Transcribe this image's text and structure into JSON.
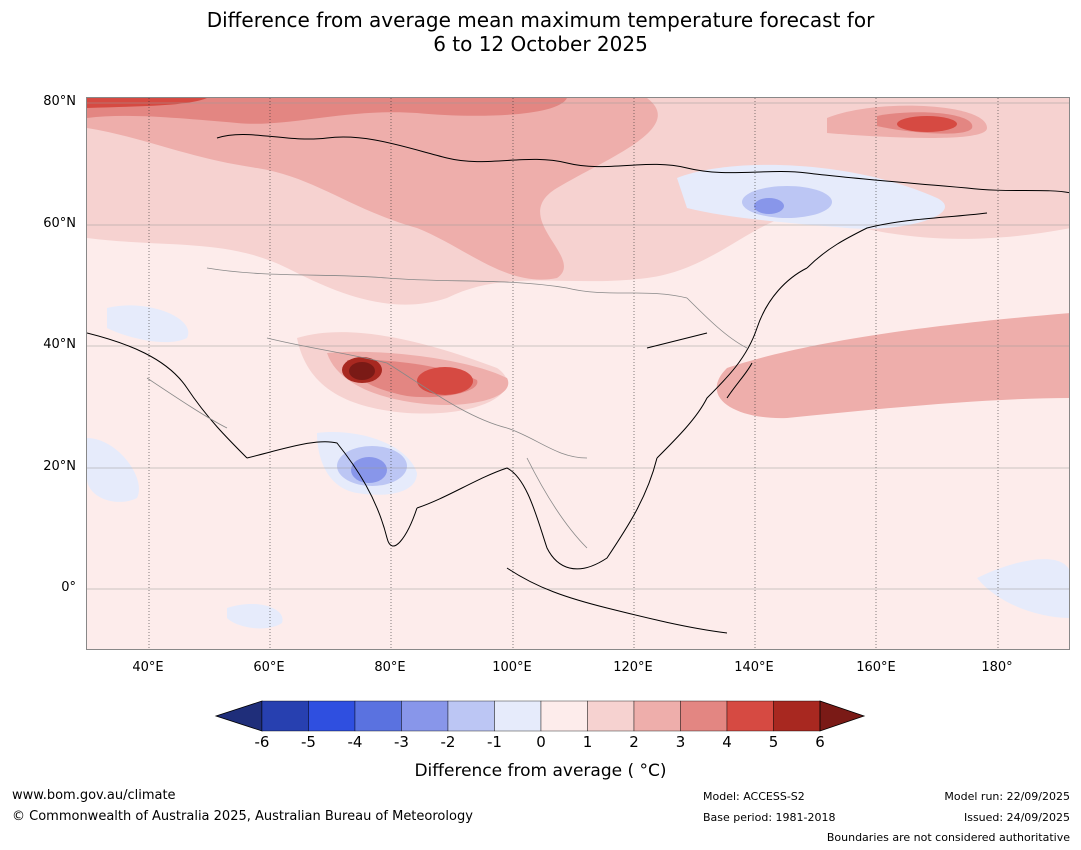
{
  "title_line1": "Difference from average mean maximum temperature forecast for",
  "title_line2": "6 to 12 October 2025",
  "lat_labels": [
    "80°N",
    "60°N",
    "40°N",
    "20°N",
    "0°"
  ],
  "lon_labels": [
    "40°E",
    "60°E",
    "80°E",
    "100°E",
    "120°E",
    "140°E",
    "160°E",
    "180°"
  ],
  "colorbar": {
    "ticks": [
      "-6",
      "-5",
      "-4",
      "-3",
      "-2",
      "-1",
      "0",
      "1",
      "2",
      "3",
      "4",
      "5",
      "6"
    ],
    "colors": [
      "#1f2e7a",
      "#2740b0",
      "#2f4fe0",
      "#5a72e0",
      "#8896ea",
      "#bcc6f4",
      "#e6ebfb",
      "#fdeceb",
      "#f6d2d0",
      "#eeaeab",
      "#e38682",
      "#d64a42",
      "#a82820",
      "#7a1a16"
    ],
    "label": "Difference from average ( °C)"
  },
  "footer": {
    "url": "www.bom.gov.au/climate",
    "copyright": "© Commonwealth of Australia 2025, Australian Bureau of Meteorology",
    "model": "Model: ACCESS-S2",
    "base_period": "Base period: 1981-2018",
    "model_run": "Model run: 22/09/2025",
    "issued": "Issued: 24/09/2025",
    "disclaimer": "Boundaries are not considered authoritative"
  }
}
